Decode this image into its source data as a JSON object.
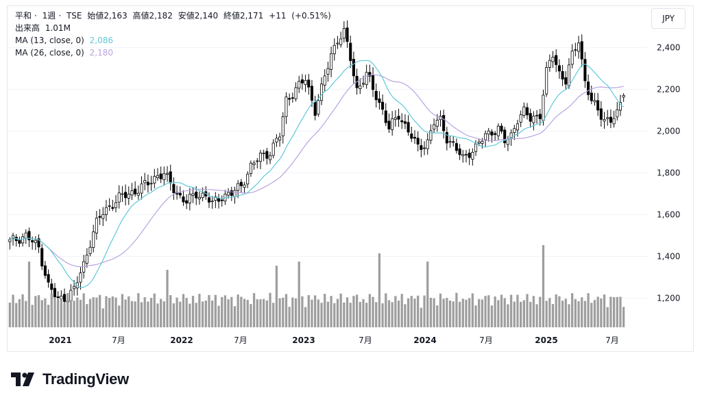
{
  "legend": {
    "symbol": "平和",
    "interval": "1週",
    "exchange": "TSE",
    "open_label": "始値",
    "open": "2,163",
    "high_label": "高値",
    "high": "2,182",
    "low_label": "安値",
    "low": "2,140",
    "close_label": "終値",
    "close": "2,171",
    "change": "+11",
    "change_pct": "(+0.51%)",
    "volume_label": "出来高",
    "volume": "1.01M",
    "ma13_label": "MA (13, close, 0)",
    "ma13_value": "2,086",
    "ma26_label": "MA (26, close, 0)",
    "ma26_value": "2,180"
  },
  "currency": "JPY",
  "brand": {
    "name": "TradingView",
    "logo": "tradingview-logo-icon"
  },
  "colors": {
    "candle": "#000000",
    "volume": "#9e9e9e",
    "ma13": "#5ec8d8",
    "ma26": "#b9a2de",
    "grid": "#f0f3fa"
  },
  "chart_data": {
    "type": "candlestick",
    "y_ticks": [
      1200,
      1400,
      1600,
      1800,
      2000,
      2200,
      2400
    ],
    "y_tick_labels": [
      "1,200",
      "1,400",
      "1,600",
      "1,800",
      "2,000",
      "2,200",
      "2,400"
    ],
    "ylim": [
      1060,
      2530
    ],
    "x_labels": [
      "2021",
      "7月",
      "2022",
      "7月",
      "2023",
      "7月",
      "2024",
      "7月",
      "2025",
      "7月"
    ],
    "x_label_years": [
      true,
      false,
      true,
      false,
      true,
      false,
      true,
      false,
      true,
      false
    ],
    "close_path": [
      [
        0,
        1470
      ],
      [
        5,
        1500
      ],
      [
        9,
        1440
      ],
      [
        12,
        1260
      ],
      [
        15,
        1190
      ],
      [
        18,
        1210
      ],
      [
        20,
        1240
      ],
      [
        23,
        1360
      ],
      [
        25,
        1470
      ],
      [
        27,
        1560
      ],
      [
        29,
        1610
      ],
      [
        31,
        1640
      ],
      [
        34,
        1680
      ],
      [
        37,
        1700
      ],
      [
        40,
        1720
      ],
      [
        43,
        1750
      ],
      [
        46,
        1790
      ],
      [
        48,
        1790
      ],
      [
        50,
        1750
      ],
      [
        52,
        1700
      ],
      [
        55,
        1660
      ],
      [
        58,
        1700
      ],
      [
        61,
        1690
      ],
      [
        63,
        1650
      ],
      [
        66,
        1690
      ],
      [
        69,
        1700
      ],
      [
        72,
        1740
      ],
      [
        75,
        1830
      ],
      [
        78,
        1880
      ],
      [
        81,
        1900
      ],
      [
        84,
        1980
      ],
      [
        86,
        2150
      ],
      [
        89,
        2200
      ],
      [
        92,
        2250
      ],
      [
        95,
        2100
      ],
      [
        97,
        2200
      ],
      [
        100,
        2370
      ],
      [
        102,
        2440
      ],
      [
        104,
        2470
      ],
      [
        106,
        2350
      ],
      [
        108,
        2200
      ],
      [
        111,
        2270
      ],
      [
        114,
        2170
      ],
      [
        116,
        2100
      ],
      [
        118,
        2010
      ],
      [
        121,
        2080
      ],
      [
        124,
        2000
      ],
      [
        127,
        1920
      ],
      [
        130,
        1950
      ],
      [
        132,
        2040
      ],
      [
        134,
        2050
      ],
      [
        136,
        1970
      ],
      [
        139,
        1910
      ],
      [
        141,
        1870
      ],
      [
        143,
        1900
      ],
      [
        145,
        1920
      ],
      [
        148,
        1980
      ],
      [
        150,
        2000
      ],
      [
        152,
        2010
      ],
      [
        154,
        1950
      ],
      [
        156,
        1980
      ],
      [
        158,
        2060
      ],
      [
        160,
        2090
      ],
      [
        162,
        2060
      ],
      [
        165,
        2080
      ],
      [
        167,
        2280
      ],
      [
        169,
        2370
      ],
      [
        171,
        2280
      ],
      [
        173,
        2240
      ],
      [
        175,
        2360
      ],
      [
        177,
        2440
      ],
      [
        179,
        2240
      ],
      [
        181,
        2140
      ],
      [
        183,
        2100
      ],
      [
        185,
        2060
      ],
      [
        187,
        2050
      ],
      [
        189,
        2080
      ],
      [
        191,
        2171
      ]
    ],
    "total_weeks": 192,
    "volume_max": 1.0,
    "last": {
      "open": 2163,
      "high": 2182,
      "low": 2140,
      "close": 2171,
      "change": 11,
      "change_pct": 0.51,
      "volume": "1.01M"
    },
    "ma13_last": 2086,
    "ma26_last": 2180
  }
}
